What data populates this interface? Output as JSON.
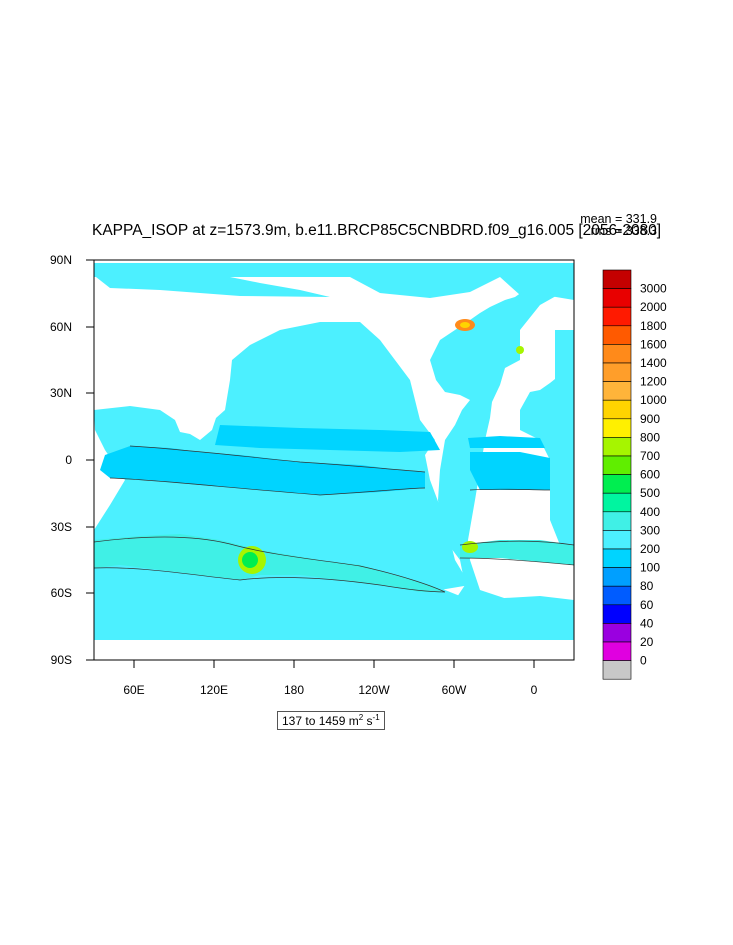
{
  "title": "KAPPA_ISOP at z=1573.9m, b.e11.BRCP85C5CNBDRD.f09_g16.005 [2056-2080]",
  "stats": {
    "mean": "mean = 331.9",
    "rms": "rms = 338.3"
  },
  "range_label": {
    "text": "137 to 1459 m",
    "unit_m_exp": "2",
    "unit_s": " s",
    "unit_s_exp": "-1"
  },
  "map": {
    "projection": "cylindrical equidistant",
    "lon_range": [
      30,
      390
    ],
    "lat_range": [
      -90,
      90
    ],
    "lat_ticks": [
      "90N",
      "60N",
      "30N",
      "0",
      "30S",
      "60S",
      "90S"
    ],
    "lon_ticks": [
      "60E",
      "120E",
      "180",
      "120W",
      "60W",
      "0"
    ],
    "land_color": "#ffffff",
    "ocean_base_color": "#4cf0ff"
  },
  "colorbar": {
    "labels": [
      "3000",
      "2000",
      "1800",
      "1600",
      "1400",
      "1200",
      "1000",
      "900",
      "800",
      "700",
      "600",
      "500",
      "400",
      "300",
      "200",
      "100",
      "80",
      "60",
      "40",
      "20",
      "0"
    ],
    "colors": [
      "#c40000",
      "#e80000",
      "#ff1a00",
      "#ff5a00",
      "#ff8a1a",
      "#ff9e2a",
      "#ffb43a",
      "#ffd400",
      "#fff000",
      "#a6f500",
      "#60ee00",
      "#00ee50",
      "#00f5a0",
      "#40f0e6",
      "#4cf0ff",
      "#00d4ff",
      "#009fff",
      "#005cff",
      "#0000ff",
      "#9a00e0",
      "#e000e0",
      "#c8c8c8"
    ]
  }
}
